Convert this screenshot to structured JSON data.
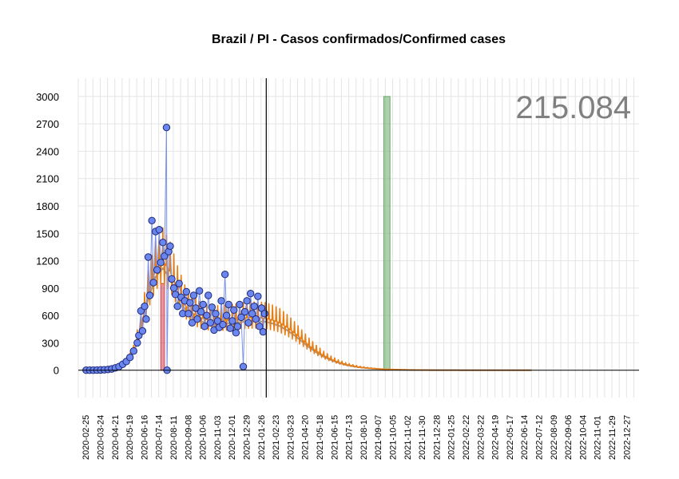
{
  "chart_data": {
    "type": "line",
    "title": "Brazil / PI - Casos confirmados/Confirmed cases",
    "total_label": "215.084",
    "xlabel": "",
    "ylabel": "",
    "ylim": [
      -300,
      3200
    ],
    "yticks": [
      0,
      300,
      600,
      900,
      1200,
      1500,
      1800,
      2100,
      2400,
      2700,
      3000
    ],
    "xlim": [
      "2020-02-11",
      "2023-01-20"
    ],
    "xticks": [
      "2020-02-25",
      "2020-03-24",
      "2020-04-21",
      "2020-05-19",
      "2020-06-16",
      "2020-07-14",
      "2020-08-11",
      "2020-09-08",
      "2020-10-06",
      "2020-11-03",
      "2020-12-01",
      "2020-12-29",
      "2021-01-26",
      "2021-02-23",
      "2021-03-23",
      "2021-04-20",
      "2021-05-18",
      "2021-06-15",
      "2021-07-13",
      "2021-08-10",
      "2021-09-07",
      "2021-10-05",
      "2021-11-02",
      "2021-11-30",
      "2021-12-28",
      "2022-01-25",
      "2022-02-22",
      "2022-03-22",
      "2022-04-19",
      "2022-05-17",
      "2022-06-14",
      "2022-07-12",
      "2022-08-09",
      "2022-09-06",
      "2022-10-04",
      "2022-11-01",
      "2022-11-29",
      "2022-12-27"
    ],
    "vertical_line_date": "2021-02-05",
    "highlight_bands": [
      {
        "name": "red",
        "start": "2020-07-18",
        "end": "2020-07-25",
        "ymax": 950,
        "color": "#d04050"
      },
      {
        "name": "green",
        "start": "2021-09-18",
        "end": "2021-09-30",
        "ymax": 3000,
        "color": "#6aaa6a"
      }
    ],
    "series": [
      {
        "name": "",
        "role": "observed",
        "color": "#3b5bdb",
        "points": [
          [
            "2020-02-26",
            0
          ],
          [
            "2020-03-04",
            0
          ],
          [
            "2020-03-11",
            0
          ],
          [
            "2020-03-18",
            1
          ],
          [
            "2020-03-25",
            3
          ],
          [
            "2020-04-01",
            5
          ],
          [
            "2020-04-08",
            8
          ],
          [
            "2020-04-15",
            14
          ],
          [
            "2020-04-22",
            25
          ],
          [
            "2020-04-29",
            40
          ],
          [
            "2020-05-06",
            65
          ],
          [
            "2020-05-13",
            95
          ],
          [
            "2020-05-20",
            140
          ],
          [
            "2020-05-27",
            210
          ],
          [
            "2020-06-03",
            300
          ],
          [
            "2020-06-06",
            380
          ],
          [
            "2020-06-10",
            650
          ],
          [
            "2020-06-13",
            430
          ],
          [
            "2020-06-17",
            700
          ],
          [
            "2020-06-20",
            560
          ],
          [
            "2020-06-24",
            1240
          ],
          [
            "2020-06-27",
            820
          ],
          [
            "2020-07-01",
            1640
          ],
          [
            "2020-07-04",
            960
          ],
          [
            "2020-07-08",
            1520
          ],
          [
            "2020-07-11",
            1100
          ],
          [
            "2020-07-15",
            1540
          ],
          [
            "2020-07-18",
            1180
          ],
          [
            "2020-07-22",
            1400
          ],
          [
            "2020-07-25",
            1250
          ],
          [
            "2020-07-29",
            2660
          ],
          [
            "2020-07-30",
            0
          ],
          [
            "2020-08-02",
            1300
          ],
          [
            "2020-08-05",
            1360
          ],
          [
            "2020-08-08",
            1000
          ],
          [
            "2020-08-12",
            900
          ],
          [
            "2020-08-15",
            830
          ],
          [
            "2020-08-19",
            700
          ],
          [
            "2020-08-22",
            950
          ],
          [
            "2020-08-26",
            800
          ],
          [
            "2020-08-29",
            620
          ],
          [
            "2020-09-02",
            760
          ],
          [
            "2020-09-05",
            860
          ],
          [
            "2020-09-09",
            620
          ],
          [
            "2020-09-12",
            740
          ],
          [
            "2020-09-16",
            520
          ],
          [
            "2020-09-19",
            820
          ],
          [
            "2020-09-23",
            680
          ],
          [
            "2020-09-26",
            560
          ],
          [
            "2020-09-30",
            870
          ],
          [
            "2020-10-03",
            640
          ],
          [
            "2020-10-07",
            720
          ],
          [
            "2020-10-10",
            480
          ],
          [
            "2020-10-14",
            600
          ],
          [
            "2020-10-17",
            820
          ],
          [
            "2020-10-21",
            520
          ],
          [
            "2020-10-24",
            690
          ],
          [
            "2020-10-28",
            440
          ],
          [
            "2020-10-31",
            620
          ],
          [
            "2020-11-04",
            540
          ],
          [
            "2020-11-07",
            470
          ],
          [
            "2020-11-11",
            760
          ],
          [
            "2020-11-14",
            500
          ],
          [
            "2020-11-18",
            1050
          ],
          [
            "2020-11-21",
            600
          ],
          [
            "2020-11-25",
            720
          ],
          [
            "2020-11-28",
            460
          ],
          [
            "2020-12-02",
            540
          ],
          [
            "2020-12-05",
            660
          ],
          [
            "2020-12-09",
            410
          ],
          [
            "2020-12-12",
            480
          ],
          [
            "2020-12-16",
            720
          ],
          [
            "2020-12-19",
            580
          ],
          [
            "2020-12-23",
            40
          ],
          [
            "2020-12-26",
            640
          ],
          [
            "2020-12-30",
            760
          ],
          [
            "2021-01-02",
            520
          ],
          [
            "2021-01-06",
            840
          ],
          [
            "2021-01-09",
            620
          ],
          [
            "2021-01-13",
            700
          ],
          [
            "2021-01-16",
            560
          ],
          [
            "2021-01-20",
            810
          ],
          [
            "2021-01-23",
            480
          ],
          [
            "2021-01-27",
            680
          ],
          [
            "2021-01-30",
            420
          ],
          [
            "2021-02-02",
            620
          ]
        ]
      },
      {
        "name": "",
        "role": "model",
        "color": "#e87d14",
        "points": [
          [
            "2020-02-26",
            0
          ],
          [
            "2020-03-25",
            3
          ],
          [
            "2020-04-22",
            20
          ],
          [
            "2020-05-13",
            80
          ],
          [
            "2020-05-27",
            210
          ],
          [
            "2020-06-10",
            470
          ],
          [
            "2020-06-24",
            840
          ],
          [
            "2020-07-08",
            1100
          ],
          [
            "2020-07-22",
            1200
          ],
          [
            "2020-08-05",
            1080
          ],
          [
            "2020-08-19",
            880
          ],
          [
            "2020-09-02",
            720
          ],
          [
            "2020-09-16",
            630
          ],
          [
            "2020-09-30",
            580
          ],
          [
            "2020-10-14",
            555
          ],
          [
            "2020-10-28",
            545
          ],
          [
            "2020-11-11",
            545
          ],
          [
            "2020-11-25",
            550
          ],
          [
            "2020-12-09",
            560
          ],
          [
            "2020-12-23",
            570
          ],
          [
            "2021-01-06",
            575
          ],
          [
            "2021-01-20",
            575
          ],
          [
            "2021-02-03",
            570
          ],
          [
            "2021-02-17",
            550
          ],
          [
            "2021-03-03",
            520
          ],
          [
            "2021-03-17",
            470
          ],
          [
            "2021-03-31",
            410
          ],
          [
            "2021-04-14",
            340
          ],
          [
            "2021-04-28",
            270
          ],
          [
            "2021-05-12",
            210
          ],
          [
            "2021-05-26",
            160
          ],
          [
            "2021-06-09",
            120
          ],
          [
            "2021-06-23",
            88
          ],
          [
            "2021-07-07",
            64
          ],
          [
            "2021-07-21",
            46
          ],
          [
            "2021-08-04",
            33
          ],
          [
            "2021-08-18",
            24
          ],
          [
            "2021-09-01",
            17
          ],
          [
            "2021-09-15",
            12
          ],
          [
            "2021-10-13",
            6
          ],
          [
            "2021-11-10",
            3
          ],
          [
            "2021-12-22",
            1
          ],
          [
            "2022-03-01",
            0
          ],
          [
            "2022-06-28",
            0
          ]
        ]
      }
    ],
    "grid": true
  }
}
